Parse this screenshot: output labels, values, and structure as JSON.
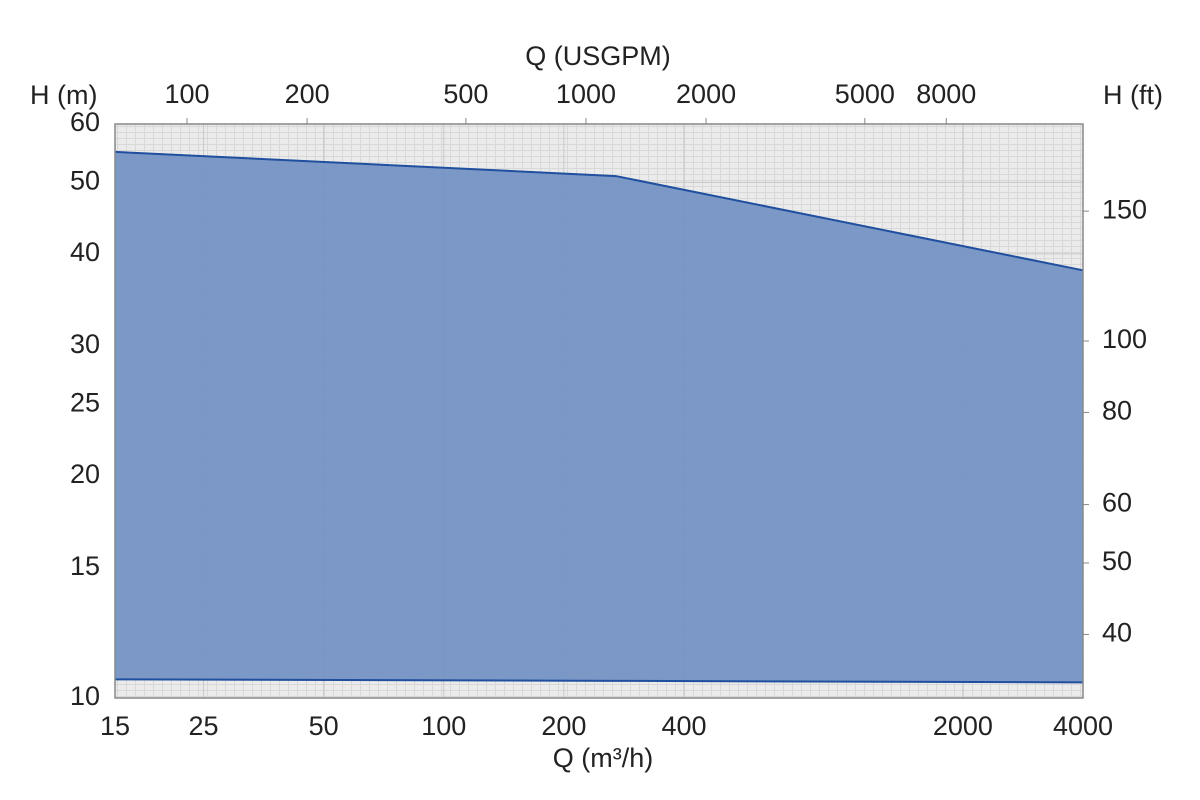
{
  "chart_data": {
    "type": "area",
    "x_label": "Q (m³/h)",
    "x2_label": "Q (USGPM)",
    "y_label": "H (m)",
    "y2_label": "H (ft)",
    "x": [
      15,
      270,
      4000
    ],
    "series": [
      {
        "color": "#1f4f9e",
        "fill": "#7593c4",
        "values": [
          55,
          51,
          38
        ]
      },
      {
        "color": "#1f4f9e",
        "fill": "#7593c4",
        "values": [
          10.6,
          10.55,
          10.5
        ]
      }
    ],
    "xscale": "log",
    "yscale": "log",
    "xlim": [
      15,
      4000
    ],
    "xticks": [
      15,
      25,
      50,
      100,
      200,
      400,
      2000,
      4000
    ],
    "x2lim": [
      66,
      17611
    ],
    "x2ticks": [
      100,
      200,
      500,
      1000,
      2000,
      5000,
      8000
    ],
    "ylim": [
      10,
      60
    ],
    "yticks": [
      10,
      15,
      20,
      25,
      30,
      40,
      50,
      60
    ],
    "y2lim": [
      32.8,
      196.9
    ],
    "y2ticks": [
      40,
      50,
      60,
      80,
      100,
      150
    ],
    "grid": true
  }
}
